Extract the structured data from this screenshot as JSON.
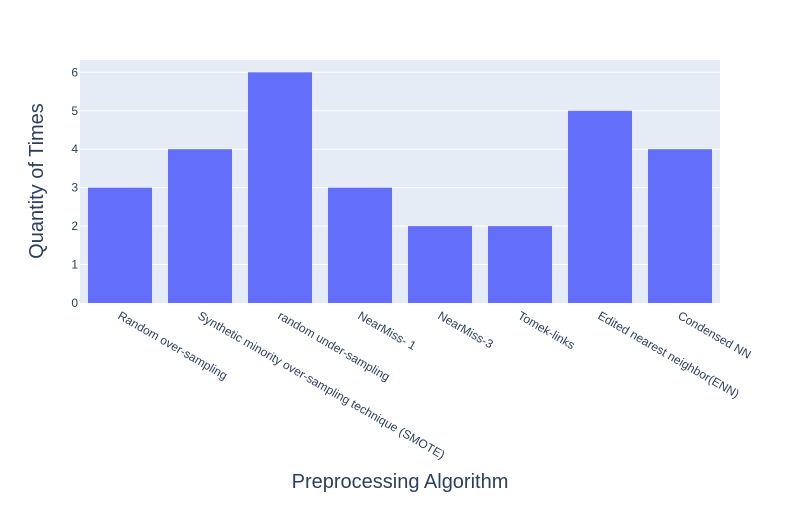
{
  "chart_data": {
    "type": "bar",
    "title": "",
    "xlabel": "Preprocessing Algorithm",
    "ylabel": "Quantity of Times",
    "categories": [
      "Random over-sampling",
      "Synthetic minority over-sampling technique (SMOTE)",
      "random under-sampling",
      "NearMiss- 1",
      "NearMiss-3",
      "Tomek-links",
      "Edited nearest neighbor(ENN)",
      "Condensed NN"
    ],
    "values": [
      3,
      4,
      6,
      3,
      2,
      2,
      5,
      4
    ],
    "ylim": [
      0,
      6.32
    ],
    "yticks": [
      0,
      1,
      2,
      3,
      4,
      5,
      6
    ],
    "grid": true,
    "legend": "none",
    "colors": {
      "bar": "#636efa",
      "plot_background": "#e5ecf6",
      "grid": "#ffffff",
      "text": "#2a3f5f"
    }
  }
}
